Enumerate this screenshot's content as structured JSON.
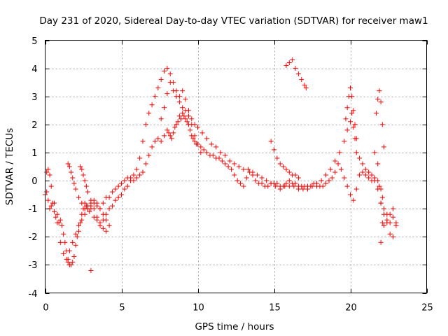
{
  "chart_data": {
    "type": "scatter",
    "title": "Day 231 of 2020, Sidereal Day-to-day VTEC variation (SDTVAR) for receiver maw1",
    "xlabel": "GPS time / hours",
    "ylabel": "SDTVAR / TECUs",
    "xlim": [
      0,
      25
    ],
    "ylim": [
      -4,
      5
    ],
    "xticks": [
      0,
      5,
      10,
      15,
      20,
      25
    ],
    "yticks": [
      -4,
      -3,
      -2,
      -1,
      0,
      1,
      2,
      3,
      4,
      5
    ],
    "grid": true,
    "marker": "+",
    "color": "#ff0000",
    "series": [
      {
        "name": "SDTVAR",
        "x": [
          0.0,
          0.1,
          0.2,
          0.3,
          0.4,
          0.5,
          0.6,
          0.7,
          0.8,
          0.9,
          1.0,
          1.1,
          1.2,
          1.3,
          1.4,
          1.5,
          1.6,
          1.7,
          1.8,
          1.9,
          2.0,
          2.1,
          2.2,
          2.3,
          2.4,
          2.5,
          2.6,
          2.7,
          2.8,
          2.9,
          3.0,
          3.2,
          3.4,
          3.6,
          3.8,
          4.0,
          4.2,
          4.4,
          4.6,
          4.8,
          5.0,
          5.2,
          5.4,
          5.6,
          5.8,
          6.0,
          6.2,
          6.4,
          6.6,
          6.8,
          7.0,
          7.2,
          7.4,
          7.6,
          7.8,
          8.0,
          8.1,
          8.2,
          8.3,
          8.4,
          8.5,
          8.6,
          8.7,
          8.8,
          8.9,
          9.0,
          9.1,
          9.2,
          9.3,
          9.4,
          9.5,
          9.6,
          9.7,
          9.8,
          9.9,
          10.0,
          10.2,
          10.4,
          10.6,
          10.8,
          11.0,
          11.2,
          11.4,
          11.6,
          11.8,
          12.0,
          12.2,
          12.4,
          12.6,
          12.8,
          13.0,
          13.2,
          13.4,
          13.6,
          13.8,
          14.0,
          14.2,
          14.4,
          14.6,
          14.8,
          15.0,
          15.2,
          15.4,
          15.6,
          15.8,
          16.0,
          16.2,
          16.4,
          16.6,
          16.8,
          17.0,
          17.2,
          17.4,
          17.6,
          17.8,
          18.0,
          18.2,
          18.4,
          18.6,
          18.8,
          19.0,
          19.2,
          19.4,
          19.6,
          19.8,
          20.0,
          20.2,
          20.4,
          20.6,
          20.8,
          21.0,
          21.2,
          21.4,
          21.6,
          21.8,
          22.0,
          22.2,
          22.4,
          22.6,
          22.8,
          23.0,
          0.1,
          0.2,
          0.3,
          0.4,
          0.6,
          0.8,
          1.0,
          1.2,
          1.4,
          1.5,
          1.6,
          1.8,
          2.0,
          2.2,
          2.4,
          2.6,
          2.8,
          3.0,
          3.2,
          3.4,
          3.6,
          3.8,
          4.0,
          4.2,
          4.4,
          4.6,
          4.8,
          5.0,
          5.2,
          5.4,
          5.6,
          5.8,
          6.0,
          6.2,
          6.4,
          6.6,
          6.8,
          7.0,
          7.2,
          7.4,
          7.6,
          7.8,
          8.0,
          8.2,
          8.4,
          8.6,
          8.8,
          9.0,
          9.2,
          9.4,
          9.6,
          9.8,
          10.0,
          10.3,
          10.6,
          10.9,
          11.2,
          11.5,
          11.8,
          12.1,
          12.4,
          12.7,
          13.0,
          13.3,
          13.6,
          13.9,
          14.2,
          14.5,
          14.8,
          15.1,
          15.4,
          15.7,
          16.0,
          16.3,
          16.6,
          16.9,
          17.2,
          17.5,
          17.8,
          18.1,
          18.4,
          18.7,
          19.0,
          19.3,
          19.6,
          19.8,
          20.0,
          20.1,
          20.2,
          20.3,
          20.4,
          20.6,
          20.8,
          21.0,
          21.2,
          21.4,
          21.6,
          21.8,
          22.0,
          22.1,
          22.2,
          22.4,
          22.6,
          22.8,
          1.5,
          1.6,
          1.7,
          1.8,
          1.9,
          2.0,
          2.2,
          2.4,
          2.6,
          2.8,
          3.0,
          3.2,
          3.4,
          3.6,
          3.8,
          4.0,
          2.3,
          2.4,
          2.5,
          2.6,
          2.7,
          2.8,
          3.0,
          3.2,
          3.4,
          3.6,
          3.8,
          4.0,
          4.2,
          7.6,
          7.8,
          8.0,
          8.2,
          8.4,
          8.6,
          8.8,
          9.0,
          9.2,
          9.4,
          9.6,
          9.8,
          10.0,
          10.2,
          14.8,
          15.0,
          15.2,
          15.4,
          15.6,
          15.8,
          16.0,
          16.2,
          16.4,
          16.6,
          15.8,
          16.0,
          16.2,
          16.4,
          16.6,
          16.8,
          17.0,
          17.1,
          3.0,
          19.7,
          19.8,
          19.9,
          20.0,
          20.1,
          20.2,
          20.3,
          20.4,
          21.6,
          21.7,
          21.8,
          21.9,
          22.0,
          22.1,
          22.2,
          21.8,
          21.9,
          22.0,
          22.1,
          22.0,
          22.2,
          22.4,
          22.6,
          22.8,
          23.0
        ],
        "y": [
          -0.5,
          -0.4,
          -0.7,
          -1.0,
          -0.9,
          -0.8,
          -1.1,
          -1.3,
          -1.2,
          -1.5,
          -1.4,
          -1.6,
          -1.9,
          -2.2,
          -2.5,
          -2.8,
          -3.0,
          -3.0,
          -2.9,
          -2.7,
          -2.3,
          -2.0,
          -1.8,
          -1.5,
          -1.2,
          -1.0,
          -0.8,
          -0.9,
          -1.0,
          -1.1,
          -1.0,
          -1.3,
          -1.4,
          -1.6,
          -1.4,
          -1.2,
          -1.0,
          -0.9,
          -0.7,
          -0.6,
          -0.5,
          -0.3,
          -0.2,
          0.0,
          0.0,
          0.1,
          0.2,
          0.3,
          0.6,
          0.9,
          1.2,
          1.4,
          1.5,
          1.4,
          1.6,
          1.8,
          1.7,
          1.6,
          1.5,
          1.7,
          1.9,
          2.0,
          2.1,
          2.3,
          2.2,
          2.4,
          2.3,
          2.2,
          2.1,
          2.0,
          1.8,
          1.6,
          1.5,
          1.4,
          1.3,
          1.3,
          1.2,
          1.1,
          1.0,
          0.9,
          0.9,
          0.8,
          0.8,
          0.7,
          0.6,
          0.5,
          0.4,
          0.2,
          0.0,
          -0.1,
          -0.2,
          0.1,
          0.3,
          0.2,
          0.0,
          -0.1,
          -0.1,
          -0.2,
          -0.2,
          -0.1,
          -0.1,
          -0.1,
          -0.2,
          -0.2,
          -0.1,
          0.0,
          -0.1,
          -0.1,
          -0.2,
          -0.2,
          -0.2,
          -0.3,
          -0.2,
          -0.1,
          -0.2,
          -0.2,
          -0.2,
          -0.1,
          0.0,
          0.1,
          0.3,
          0.6,
          0.4,
          0.1,
          -0.2,
          -0.5,
          -0.7,
          -0.3,
          0.2,
          0.3,
          0.2,
          0.1,
          0.0,
          0.0,
          -0.3,
          -0.8,
          -1.2,
          -1.4,
          -1.2,
          -1.0,
          -1.5,
          0.3,
          0.4,
          0.2,
          -0.2,
          -0.8,
          -1.5,
          -2.2,
          -2.6,
          -2.8,
          -2.9,
          -2.5,
          -2.2,
          -1.9,
          -1.6,
          -1.4,
          -1.2,
          -1.0,
          -0.9,
          -0.8,
          -0.9,
          -1.0,
          -0.8,
          -0.6,
          -0.6,
          -0.4,
          -0.3,
          -0.2,
          -0.1,
          0.0,
          0.1,
          0.1,
          0.2,
          0.4,
          0.8,
          1.4,
          2.0,
          2.4,
          2.7,
          3.0,
          3.3,
          3.6,
          3.9,
          4.0,
          3.8,
          3.5,
          3.2,
          3.0,
          3.2,
          2.9,
          2.5,
          2.2,
          2.0,
          1.9,
          1.7,
          1.5,
          1.3,
          1.2,
          1.0,
          0.9,
          0.7,
          0.6,
          0.5,
          0.4,
          0.4,
          0.3,
          0.2,
          0.1,
          0.0,
          -0.1,
          -0.2,
          -0.3,
          -0.2,
          -0.2,
          -0.2,
          -0.3,
          -0.3,
          -0.2,
          -0.2,
          -0.1,
          0.0,
          0.2,
          0.4,
          0.7,
          1.0,
          1.4,
          1.8,
          2.1,
          2.4,
          1.9,
          1.5,
          1.0,
          0.8,
          0.6,
          0.4,
          0.3,
          0.2,
          0.1,
          0.0,
          -0.3,
          -0.6,
          -1.0,
          -1.5,
          -1.9,
          -2.0,
          0.6,
          0.5,
          0.3,
          0.1,
          -0.1,
          -0.3,
          -0.6,
          -0.8,
          -1.0,
          -0.9,
          -0.8,
          -0.7,
          -0.8,
          -1.0,
          -1.2,
          -1.4,
          0.5,
          0.4,
          0.2,
          0.0,
          -0.2,
          -0.4,
          -0.7,
          -1.0,
          -1.3,
          -1.5,
          -1.7,
          -1.8,
          -1.6,
          2.2,
          2.6,
          3.1,
          3.5,
          3.2,
          3.0,
          2.8,
          2.6,
          2.5,
          2.3,
          2.0,
          1.6,
          1.3,
          1.0,
          1.4,
          1.1,
          0.8,
          0.6,
          0.5,
          0.4,
          0.3,
          0.2,
          0.2,
          0.1,
          4.1,
          4.2,
          4.3,
          4.0,
          3.8,
          3.6,
          3.4,
          3.3,
          -3.2,
          2.2,
          2.6,
          3.0,
          3.3,
          3.0,
          2.5,
          2.0,
          1.5,
          1.0,
          2.4,
          2.9,
          3.2,
          2.8,
          2.0,
          1.2,
          0.6,
          -0.2,
          -0.8,
          -1.5,
          -2.2,
          -1.6,
          -1.2,
          -1.5,
          -1.3,
          -1.6
        ]
      }
    ]
  }
}
